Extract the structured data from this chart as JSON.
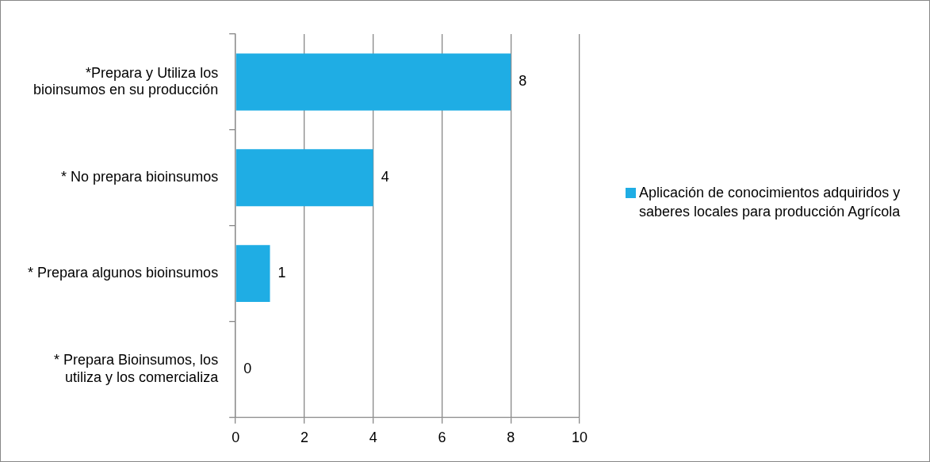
{
  "chart_data": {
    "type": "bar",
    "orientation": "horizontal",
    "categories": [
      "*Prepara y Utiliza los bioinsumos en su producción",
      "* No prepara bioinsumos",
      "* Prepara algunos bioinsumos",
      "* Prepara Bioinsumos, los utiliza y los comercializa"
    ],
    "series": [
      {
        "name": "Aplicación de conocimientos adquiridos y saberes locales para producción Agrícola",
        "color": "#1fade4",
        "values": [
          8,
          4,
          1,
          0
        ]
      }
    ],
    "xlim": [
      0,
      10
    ],
    "xticks": [
      0,
      2,
      4,
      6,
      8,
      10
    ],
    "grid": "x",
    "legend": "right",
    "data_labels": true
  }
}
